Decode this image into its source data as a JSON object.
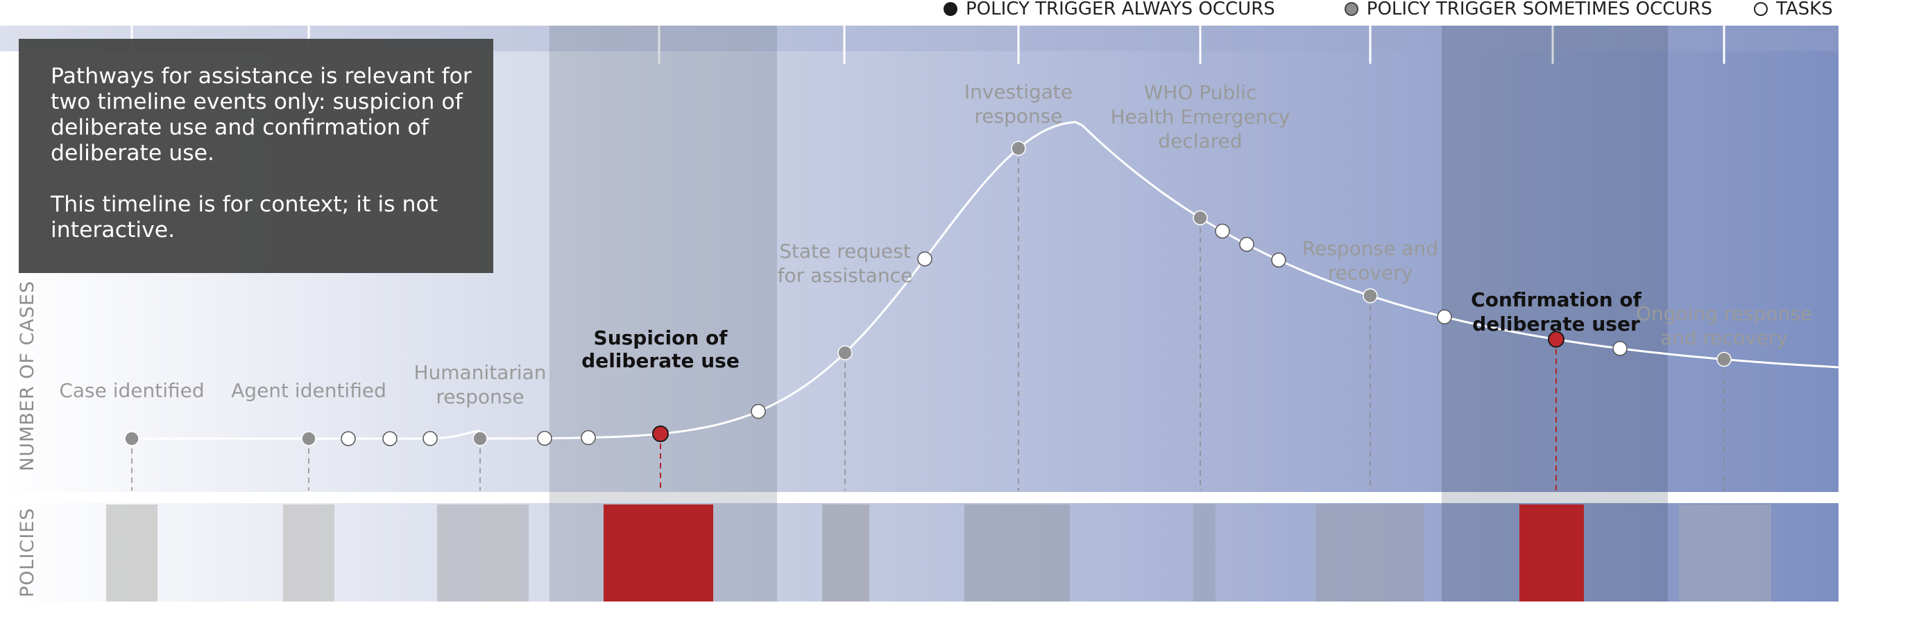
{
  "legend": {
    "always": "POLICY TRIGGER ALWAYS OCCURS",
    "sometimes": "POLICY TRIGGER SOMETIMES OCCURS",
    "tasks": "TASKS"
  },
  "axes": {
    "y_label": "NUMBER OF CASES",
    "policies_label": "POLICIES"
  },
  "infobox": {
    "text1": "Pathways for assistance is relevant for two timeline events only: suspicion of deliberate use and confirmation of deliberate use.",
    "text2": "This timeline is for context; it is not interactive."
  },
  "events": [
    {
      "id": "case-identified",
      "label": [
        "Case identified"
      ],
      "type": "sometimes",
      "highlight": false
    },
    {
      "id": "agent-identified",
      "label": [
        "Agent identified"
      ],
      "type": "sometimes",
      "highlight": false
    },
    {
      "id": "humanitarian-response",
      "label": [
        "Humanitarian",
        "response"
      ],
      "type": "sometimes",
      "highlight": false
    },
    {
      "id": "suspicion-of-deliberate-use",
      "label": [
        "Suspicion of",
        "deliberate use"
      ],
      "type": "always",
      "highlight": true
    },
    {
      "id": "state-request-for-assistance",
      "label": [
        "State request",
        "for assistance"
      ],
      "type": "sometimes",
      "highlight": false
    },
    {
      "id": "investigate-response",
      "label": [
        "Investigate",
        "response"
      ],
      "type": "sometimes",
      "highlight": false
    },
    {
      "id": "who-public-health-emergency",
      "label": [
        "WHO Public",
        "Health Emergency",
        "declared"
      ],
      "type": "sometimes",
      "highlight": false
    },
    {
      "id": "response-and-recovery",
      "label": [
        "Response and",
        "recovery"
      ],
      "type": "sometimes",
      "highlight": false
    },
    {
      "id": "confirmation-of-deliberate-user",
      "label": [
        "Confirmation of",
        "deliberate user"
      ],
      "type": "always",
      "highlight": true
    },
    {
      "id": "ongoing-response-and-recovery",
      "label": [
        "Ongoing response",
        "and recovery"
      ],
      "type": "sometimes",
      "highlight": false
    }
  ],
  "colors": {
    "highlight": "#b32226",
    "sometimes_dot": "#8f8f8f",
    "always_dot": "#c0282d",
    "curve": "#ffffff",
    "grad_start": "#ffffff",
    "grad_end": "#7d8fc2"
  }
}
